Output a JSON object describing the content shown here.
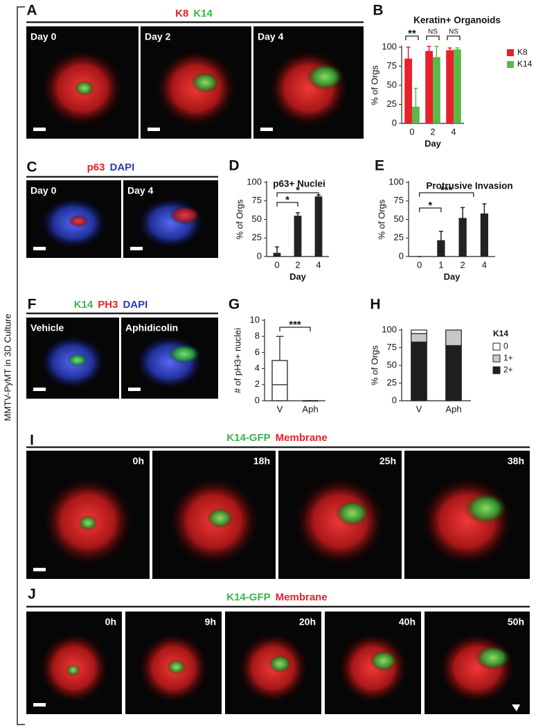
{
  "side_label": "MMTV-PyMT in 3D Culture",
  "image_panels": [
    {
      "letter": "A",
      "channels": [
        {
          "text": "K8",
          "color": "#e8202a"
        },
        {
          "text": "K14",
          "color": "#3cb34a"
        }
      ],
      "frames": [
        "Day 0",
        "Day 2",
        "Day 4"
      ]
    },
    {
      "letter": "C",
      "channels": [
        {
          "text": "p63",
          "color": "#e8202a"
        },
        {
          "text": "DAPI",
          "color": "#2b3bb0"
        }
      ],
      "frames": [
        "Day 0",
        "Day 4"
      ]
    },
    {
      "letter": "F",
      "channels": [
        {
          "text": "K14",
          "color": "#3cb34a"
        },
        {
          "text": "PH3",
          "color": "#e8202a"
        },
        {
          "text": "DAPI",
          "color": "#2b3bb0"
        }
      ],
      "frames": [
        "Vehicle",
        "Aphidicolin"
      ]
    },
    {
      "letter": "I",
      "channels": [
        {
          "text": "K14-GFP",
          "color": "#3cb34a"
        },
        {
          "text": "Membrane",
          "color": "#e8202a"
        }
      ],
      "frames": [
        "0h",
        "18h",
        "25h",
        "38h"
      ]
    },
    {
      "letter": "J",
      "channels": [
        {
          "text": "K14-GFP",
          "color": "#3cb34a"
        },
        {
          "text": "Membrane",
          "color": "#e8202a"
        }
      ],
      "frames": [
        "0h",
        "9h",
        "20h",
        "40h",
        "50h"
      ]
    }
  ],
  "chart_data": [
    {
      "letter": "B",
      "type": "bar",
      "title": "Keratin+ Organoids",
      "ylabel": "% of Orgs",
      "xlabel": "Day",
      "categories": [
        "0",
        "2",
        "4"
      ],
      "series": [
        {
          "name": "K8",
          "color": "#e8202a",
          "values": [
            85,
            95,
            96
          ],
          "errors": [
            15,
            6,
            3
          ]
        },
        {
          "name": "K14",
          "color": "#5cb848",
          "values": [
            22,
            87,
            97
          ],
          "errors": [
            24,
            14,
            2
          ]
        }
      ],
      "ylim": [
        0,
        100
      ],
      "yticks": [
        0,
        25,
        50,
        75,
        100
      ],
      "annotations": [
        "**",
        "NS",
        "NS"
      ]
    },
    {
      "letter": "D",
      "type": "bar",
      "title": "p63+ Nuclei",
      "ylabel": "% of Orgs",
      "xlabel": "Day",
      "categories": [
        "0",
        "2",
        "4"
      ],
      "series": [
        {
          "color": "#222222",
          "values": [
            5,
            55,
            81
          ],
          "errors": [
            8,
            4,
            2
          ]
        }
      ],
      "ylim": [
        0,
        100
      ],
      "yticks": [
        0,
        25,
        50,
        75,
        100
      ],
      "annotations": [
        "*",
        "*"
      ]
    },
    {
      "letter": "E",
      "type": "bar",
      "title": "Protrusive Invasion",
      "ylabel": "% of Orgs",
      "xlabel": "Day",
      "categories": [
        "0",
        "1",
        "2",
        "4"
      ],
      "series": [
        {
          "color": "#222222",
          "values": [
            0,
            22,
            52,
            58
          ],
          "errors": [
            0,
            12,
            14,
            13
          ]
        }
      ],
      "ylim": [
        0,
        100
      ],
      "yticks": [
        0,
        25,
        50,
        75,
        100
      ],
      "annotations": [
        "*",
        "***"
      ]
    },
    {
      "letter": "G",
      "type": "box",
      "ylabel": "# of pH3+ nuclei",
      "categories": [
        "V",
        "Aph"
      ],
      "boxes": [
        {
          "min": 0,
          "q1": 0,
          "median": 2,
          "q3": 5,
          "max": 8
        },
        {
          "min": 0,
          "q1": 0,
          "median": 0,
          "q3": 0,
          "max": 0
        }
      ],
      "ylim": [
        0,
        10
      ],
      "yticks": [
        0,
        2,
        4,
        6,
        8,
        10
      ],
      "annotations": [
        "***"
      ]
    },
    {
      "letter": "H",
      "type": "stacked",
      "ylabel": "% of Orgs",
      "categories": [
        "V",
        "Aph"
      ],
      "legend_title": "K14",
      "series": [
        {
          "name": "0",
          "color": "#ffffff",
          "values": [
            5,
            0
          ]
        },
        {
          "name": "1+",
          "color": "#c8c8c8",
          "values": [
            12,
            22
          ]
        },
        {
          "name": "2+",
          "color": "#1e1e1e",
          "values": [
            83,
            78
          ]
        }
      ],
      "ylim": [
        0,
        100
      ],
      "yticks": [
        0,
        25,
        50,
        75,
        100
      ]
    }
  ]
}
